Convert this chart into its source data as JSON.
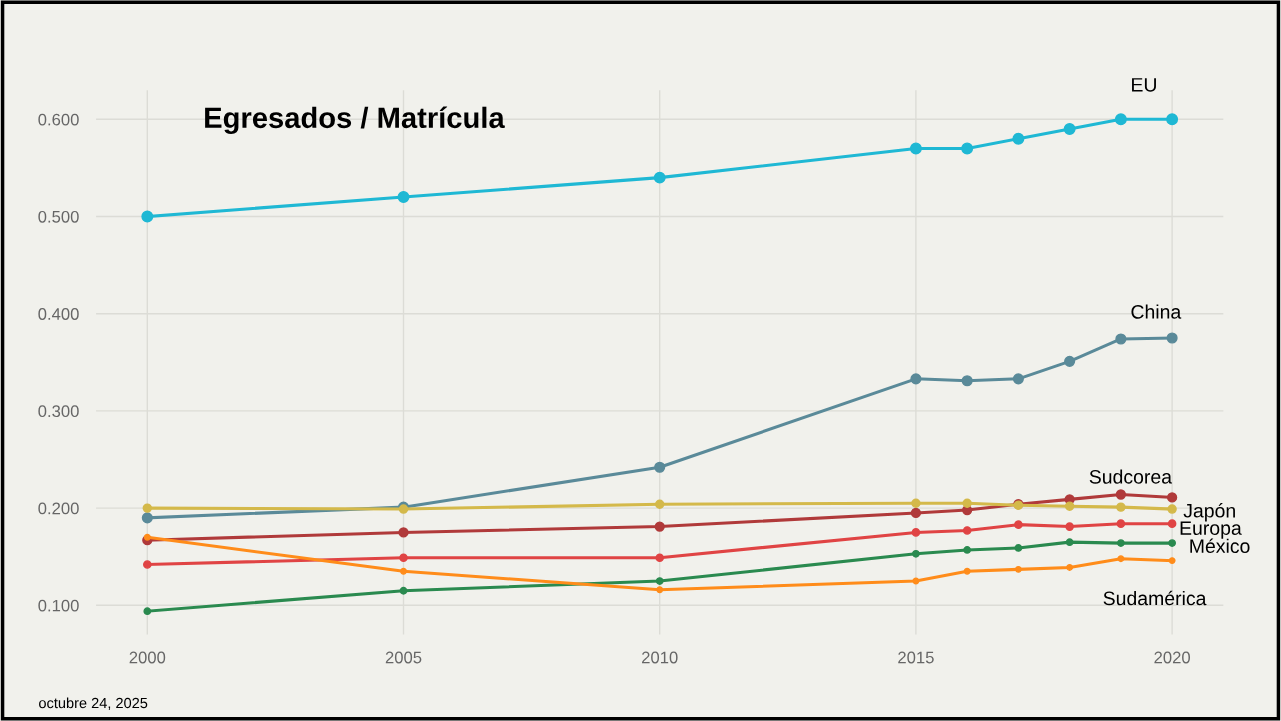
{
  "chart_data": {
    "type": "line",
    "title": "Egresados / Matrícula",
    "x": [
      2000,
      2005,
      2010,
      2015,
      2016,
      2017,
      2018,
      2019,
      2020
    ],
    "series": [
      {
        "name": "EU",
        "color": "#1fb8d4",
        "values": [
          0.5,
          0.52,
          0.54,
          0.57,
          0.57,
          0.58,
          0.59,
          0.6,
          0.6
        ]
      },
      {
        "name": "China",
        "color": "#5a8a99",
        "values": [
          0.19,
          0.201,
          0.242,
          0.333,
          0.331,
          0.333,
          0.351,
          0.374,
          0.375
        ]
      },
      {
        "name": "Sudcorea",
        "color": "#b03a3a",
        "values": [
          0.167,
          0.175,
          0.181,
          0.195,
          0.198,
          0.204,
          0.209,
          0.214,
          0.211
        ]
      },
      {
        "name": "Japón",
        "color": "#d4b94a",
        "values": [
          0.2,
          0.199,
          0.204,
          0.205,
          0.205,
          0.203,
          0.202,
          0.201,
          0.199
        ]
      },
      {
        "name": "Europa",
        "color": "#e04444",
        "values": [
          0.142,
          0.149,
          0.149,
          0.175,
          0.177,
          0.183,
          0.181,
          0.184,
          0.184
        ]
      },
      {
        "name": "México",
        "color": "#2a8a4f",
        "values": [
          0.094,
          0.115,
          0.125,
          0.153,
          0.157,
          0.159,
          0.165,
          0.164,
          0.164
        ]
      },
      {
        "name": "Sudamérica",
        "color": "#ff8c1a",
        "values": [
          0.17,
          0.135,
          0.116,
          0.125,
          0.135,
          0.137,
          0.139,
          0.148,
          0.146
        ]
      }
    ],
    "xlim": [
      1999,
      2021
    ],
    "xticks": [
      2000,
      2005,
      2010,
      2015,
      2020
    ],
    "ylim": [
      0.07,
      0.63
    ],
    "yticks": [
      {
        "value": 0.1,
        "label": "0.100"
      },
      {
        "value": 0.2,
        "label": "0.200"
      },
      {
        "value": 0.3,
        "label": "0.300"
      },
      {
        "value": 0.4,
        "label": "0.400"
      },
      {
        "value": 0.5,
        "label": "0.500"
      },
      {
        "value": 0.6,
        "label": "0.600"
      }
    ],
    "grid": true,
    "legend": false,
    "marker": "circle",
    "line_style": "solid",
    "annotations": [
      "octubre 24, 2025"
    ]
  }
}
